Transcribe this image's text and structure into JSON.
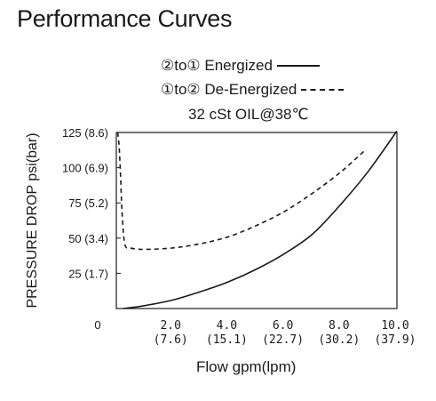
{
  "chart_data": {
    "type": "line",
    "title": "Performance Curves",
    "legend": [
      "②to① Energized",
      "①to② De-Energized",
      "32 cSt OIL@38℃"
    ],
    "xlabel": "Flow gpm(lpm)",
    "ylabel": "PRESSURE DROP psi(bar)",
    "xlim": [
      0,
      10
    ],
    "ylim": [
      0,
      125
    ],
    "x_zero_label": "0",
    "x_ticks": [
      {
        "value": 2,
        "label": "2.0",
        "sub": "(7.6)"
      },
      {
        "value": 4,
        "label": "4.0",
        "sub": "(15.1)"
      },
      {
        "value": 6,
        "label": "6.0",
        "sub": "(22.7)"
      },
      {
        "value": 8,
        "label": "8.0",
        "sub": "(30.2)"
      },
      {
        "value": 10,
        "label": "10.0",
        "sub": "(37.9)"
      }
    ],
    "y_ticks": [
      {
        "value": 25,
        "label": "25 (1.7)"
      },
      {
        "value": 50,
        "label": "50 (3.4)"
      },
      {
        "value": 75,
        "label": "75 (5.2)"
      },
      {
        "value": 100,
        "label": "100 (6.9)"
      },
      {
        "value": 125,
        "label": "125 (8.6)"
      }
    ],
    "series": [
      {
        "name": "②to① Energized",
        "style": "solid",
        "x": [
          0.25,
          1,
          2,
          3,
          4,
          5,
          6,
          7,
          8,
          9,
          10
        ],
        "y": [
          0,
          2,
          6,
          12,
          19,
          28,
          39,
          53,
          74,
          98,
          126
        ]
      },
      {
        "name": "①to② De-Energized",
        "style": "dashed",
        "x": [
          0.05,
          0.1,
          0.15,
          0.2,
          0.3,
          0.5,
          1,
          2,
          3,
          4,
          5,
          6,
          7,
          8,
          8.9
        ],
        "y": [
          125,
          115,
          95,
          70,
          46,
          43,
          42,
          43,
          46,
          51,
          59,
          69,
          82,
          97,
          113
        ]
      }
    ]
  }
}
